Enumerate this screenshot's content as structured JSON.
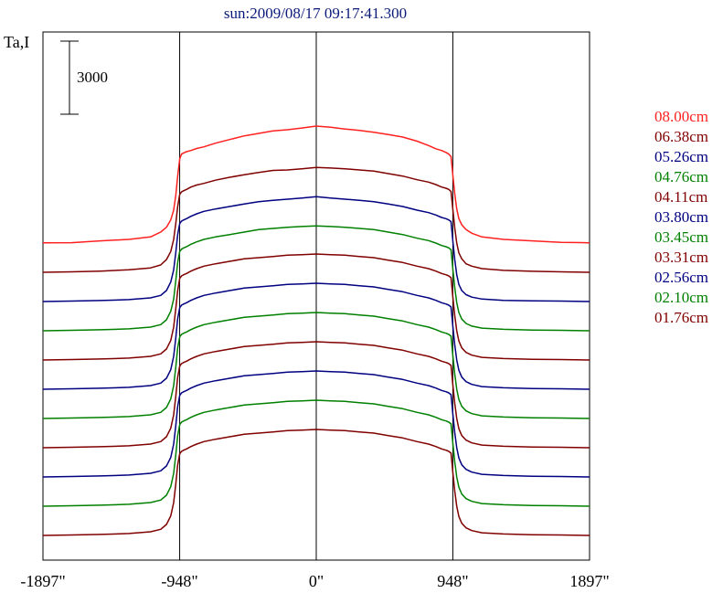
{
  "chart_data": {
    "type": "line",
    "title": "sun:2009/08/17 09:17:41.300",
    "ylabel": "Ta,I",
    "xlabel": "",
    "x_unit": "arcsec",
    "xlim": [
      -1897,
      1897
    ],
    "x_ticks": [
      -1897,
      -948,
      0,
      948,
      1897
    ],
    "x_tick_labels": [
      "-1897\"",
      "-948\"",
      "0\"",
      "948\"",
      "1897\""
    ],
    "vertical_reference_lines": [
      -948,
      0,
      948
    ],
    "scale_bar": {
      "value": 3000,
      "label": "3000"
    },
    "grid": false,
    "legend_placement": "right",
    "x_profile": [
      -1897,
      -1700,
      -1500,
      -1300,
      -1150,
      -1080,
      -1040,
      -1010,
      -990,
      -975,
      -962,
      -948,
      -935,
      -920,
      -900,
      -870,
      -830,
      -780,
      -700,
      -600,
      -500,
      -400,
      -300,
      -200,
      -100,
      0,
      100,
      200,
      300,
      400,
      500,
      600,
      700,
      780,
      830,
      870,
      900,
      920,
      935,
      948,
      962,
      975,
      990,
      1010,
      1040,
      1080,
      1150,
      1300,
      1500,
      1700,
      1897
    ],
    "series": [
      {
        "name": "08.00cm",
        "color": "#ff2020",
        "baseline": 0,
        "values": [
          10,
          15,
          90,
          150,
          250,
          450,
          650,
          950,
          1350,
          1950,
          2750,
          3450,
          3650,
          3700,
          3750,
          3800,
          3880,
          3950,
          4100,
          4250,
          4400,
          4500,
          4600,
          4650,
          4720,
          4800,
          4750,
          4680,
          4620,
          4550,
          4450,
          4350,
          4180,
          4000,
          3870,
          3800,
          3720,
          3650,
          3550,
          2800,
          2000,
          1400,
          1000,
          750,
          550,
          400,
          250,
          150,
          90,
          30,
          10
        ]
      },
      {
        "name": "06.38cm",
        "color": "#800000",
        "baseline": 0,
        "values": [
          0,
          20,
          50,
          100,
          180,
          300,
          520,
          850,
          1350,
          2000,
          2700,
          3200,
          3300,
          3350,
          3400,
          3500,
          3580,
          3650,
          3780,
          3900,
          4000,
          4100,
          4180,
          4200,
          4250,
          4300,
          4280,
          4250,
          4200,
          4150,
          4050,
          3950,
          3800,
          3700,
          3600,
          3500,
          3450,
          3400,
          3320,
          2600,
          1800,
          1200,
          800,
          550,
          350,
          250,
          150,
          80,
          40,
          20,
          0
        ]
      },
      {
        "name": "05.26cm",
        "color": "#000080",
        "baseline": 0,
        "values": [
          0,
          20,
          40,
          80,
          150,
          250,
          450,
          800,
          1300,
          2000,
          2750,
          3200,
          3300,
          3350,
          3400,
          3500,
          3600,
          3700,
          3800,
          3900,
          4000,
          4100,
          4150,
          4200,
          4250,
          4300,
          4250,
          4200,
          4150,
          4100,
          4000,
          3900,
          3750,
          3650,
          3550,
          3450,
          3400,
          3350,
          3280,
          2500,
          1700,
          1100,
          700,
          450,
          280,
          180,
          100,
          50,
          30,
          20,
          0
        ]
      },
      {
        "name": "04.76cm",
        "color": "#008000",
        "baseline": 0,
        "values": [
          0,
          20,
          40,
          80,
          150,
          250,
          450,
          800,
          1300,
          2050,
          2800,
          3250,
          3350,
          3400,
          3450,
          3550,
          3650,
          3750,
          3850,
          3950,
          4050,
          4150,
          4200,
          4250,
          4280,
          4300,
          4280,
          4250,
          4200,
          4150,
          4050,
          3950,
          3800,
          3700,
          3600,
          3500,
          3450,
          3400,
          3330,
          2550,
          1750,
          1150,
          750,
          480,
          300,
          190,
          110,
          60,
          30,
          20,
          0
        ]
      },
      {
        "name": "04.11cm",
        "color": "#800000",
        "baseline": 0,
        "values": [
          0,
          20,
          40,
          80,
          150,
          250,
          450,
          800,
          1350,
          2100,
          2850,
          3350,
          3450,
          3500,
          3550,
          3650,
          3750,
          3850,
          3950,
          4050,
          4150,
          4200,
          4250,
          4300,
          4320,
          4350,
          4320,
          4300,
          4250,
          4200,
          4100,
          4000,
          3850,
          3750,
          3650,
          3550,
          3500,
          3450,
          3380,
          2600,
          1800,
          1200,
          780,
          500,
          310,
          200,
          110,
          60,
          30,
          20,
          0
        ]
      },
      {
        "name": "03.80cm",
        "color": "#000080",
        "baseline": 0,
        "values": [
          0,
          20,
          40,
          80,
          150,
          250,
          450,
          800,
          1350,
          2100,
          2900,
          3350,
          3450,
          3500,
          3550,
          3650,
          3750,
          3850,
          3950,
          4050,
          4150,
          4200,
          4250,
          4300,
          4320,
          4350,
          4320,
          4300,
          4250,
          4200,
          4100,
          4000,
          3850,
          3750,
          3650,
          3550,
          3500,
          3450,
          3380,
          2600,
          1800,
          1200,
          780,
          500,
          310,
          200,
          110,
          60,
          30,
          20,
          0
        ]
      },
      {
        "name": "03.45cm",
        "color": "#008000",
        "baseline": 0,
        "values": [
          0,
          20,
          40,
          80,
          150,
          250,
          450,
          800,
          1350,
          2100,
          2900,
          3350,
          3450,
          3500,
          3550,
          3650,
          3750,
          3850,
          3950,
          4050,
          4150,
          4200,
          4250,
          4300,
          4320,
          4350,
          4320,
          4300,
          4250,
          4200,
          4100,
          4000,
          3850,
          3750,
          3650,
          3550,
          3500,
          3450,
          3380,
          2600,
          1800,
          1200,
          780,
          500,
          310,
          200,
          110,
          60,
          30,
          20,
          0
        ]
      },
      {
        "name": "03.31cm",
        "color": "#800000",
        "baseline": 0,
        "values": [
          0,
          20,
          40,
          80,
          150,
          250,
          450,
          800,
          1350,
          2100,
          2900,
          3350,
          3450,
          3500,
          3550,
          3650,
          3750,
          3850,
          3950,
          4050,
          4150,
          4200,
          4250,
          4300,
          4320,
          4350,
          4320,
          4300,
          4250,
          4200,
          4100,
          4000,
          3850,
          3750,
          3650,
          3550,
          3500,
          3450,
          3380,
          2600,
          1800,
          1200,
          780,
          500,
          310,
          200,
          110,
          60,
          30,
          20,
          0
        ]
      },
      {
        "name": "02.56cm",
        "color": "#000080",
        "baseline": 0,
        "values": [
          0,
          20,
          40,
          80,
          150,
          250,
          450,
          800,
          1350,
          2100,
          2900,
          3350,
          3450,
          3500,
          3550,
          3650,
          3750,
          3850,
          3950,
          4050,
          4150,
          4200,
          4250,
          4300,
          4320,
          4350,
          4320,
          4300,
          4250,
          4200,
          4100,
          4000,
          3850,
          3750,
          3650,
          3550,
          3500,
          3450,
          3380,
          2600,
          1800,
          1200,
          780,
          500,
          310,
          200,
          110,
          60,
          30,
          20,
          0
        ]
      },
      {
        "name": "02.10cm",
        "color": "#008000",
        "baseline": 0,
        "values": [
          0,
          20,
          40,
          80,
          150,
          250,
          450,
          800,
          1350,
          2100,
          2900,
          3350,
          3450,
          3500,
          3550,
          3650,
          3750,
          3850,
          3950,
          4050,
          4150,
          4200,
          4250,
          4300,
          4320,
          4350,
          4320,
          4300,
          4250,
          4200,
          4100,
          4000,
          3850,
          3750,
          3650,
          3550,
          3500,
          3450,
          3380,
          2600,
          1800,
          1200,
          780,
          500,
          310,
          200,
          110,
          60,
          30,
          20,
          0
        ]
      },
      {
        "name": "01.76cm",
        "color": "#800000",
        "baseline": 0,
        "values": [
          0,
          20,
          40,
          80,
          150,
          250,
          450,
          800,
          1350,
          2100,
          2900,
          3350,
          3450,
          3500,
          3550,
          3650,
          3750,
          3850,
          3950,
          4050,
          4150,
          4200,
          4250,
          4300,
          4320,
          4350,
          4320,
          4300,
          4250,
          4200,
          4100,
          4000,
          3850,
          3750,
          3650,
          3550,
          3500,
          3450,
          3380,
          2600,
          1800,
          1200,
          780,
          500,
          310,
          200,
          110,
          60,
          30,
          20,
          0
        ]
      }
    ]
  }
}
